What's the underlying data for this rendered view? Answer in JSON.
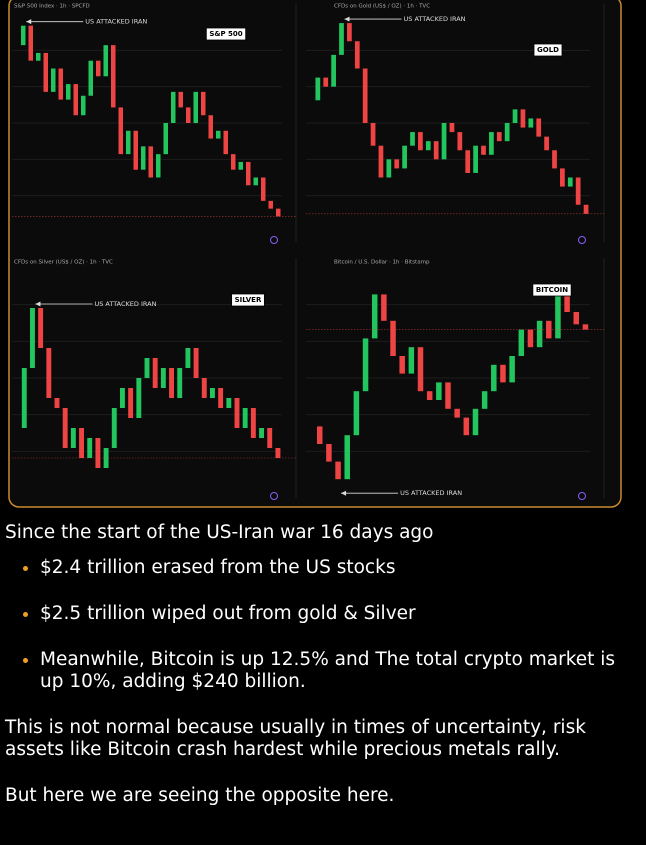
{
  "chart_data": [
    {
      "type": "candlestick",
      "header": "S&P 500 Index · 1h · SPCFD",
      "label": "S&P 500",
      "annotation": "US ATTACKED IRAN",
      "ylim": [
        6620,
        6900
      ],
      "up_color": "#22c55e",
      "down_color": "#ef4444",
      "values": [
        6860,
        6885,
        6840,
        6850,
        6800,
        6830,
        6790,
        6810,
        6770,
        6795,
        6840,
        6820,
        6860,
        6780,
        6720,
        6750,
        6700,
        6730,
        6690,
        6720,
        6760,
        6800,
        6780,
        6760,
        6800,
        6770,
        6740,
        6750,
        6720,
        6700,
        6710,
        6680,
        6690,
        6660,
        6650,
        6640
      ]
    },
    {
      "type": "candlestick",
      "header": "CFDs on Gold (US$ / OZ) · 1h · TVC",
      "label": "GOLD",
      "annotation": "US ATTACKED IRAN",
      "ylim": [
        4960,
        5440
      ],
      "up_color": "#22c55e",
      "down_color": "#ef4444",
      "values": [
        5250,
        5300,
        5280,
        5350,
        5420,
        5380,
        5320,
        5200,
        5150,
        5080,
        5120,
        5100,
        5150,
        5180,
        5140,
        5160,
        5120,
        5200,
        5180,
        5140,
        5090,
        5150,
        5130,
        5180,
        5160,
        5200,
        5230,
        5190,
        5210,
        5170,
        5140,
        5100,
        5060,
        5080,
        5020,
        5000
      ]
    },
    {
      "type": "candlestick",
      "header": "CFDs on Silver (US$ / OZ) · 1h · TVC",
      "label": "SILVER",
      "annotation": "US ATTACKED IRAN",
      "ylim": [
        76,
        98
      ],
      "up_color": "#22c55e",
      "down_color": "#ef4444",
      "values": [
        82,
        88,
        94,
        90,
        85,
        84,
        80,
        82,
        79,
        81,
        78,
        80,
        84,
        86,
        83,
        87,
        89,
        86,
        88,
        85,
        88,
        90,
        87,
        85,
        86,
        84,
        85,
        82,
        84,
        81,
        82,
        80,
        79
      ]
    },
    {
      "type": "candlestick",
      "header": "Bitcoin / U.S. Dollar · 1h · Bitstamp",
      "label": "BITCOIN",
      "annotation": "US ATTACKED IRAN",
      "ylim": [
        62500,
        75000
      ],
      "up_color": "#22c55e",
      "down_color": "#ef4444",
      "values": [
        66000,
        65000,
        64000,
        63000,
        65500,
        68000,
        71000,
        73500,
        72000,
        70000,
        69000,
        70500,
        68000,
        67500,
        68500,
        67000,
        66500,
        65500,
        67000,
        68000,
        69500,
        68500,
        70000,
        71500,
        70500,
        72000,
        71000,
        73500,
        72500,
        71800,
        71500
      ]
    }
  ],
  "post": {
    "intro": "Since the start of the US-Iran war 16 days ago",
    "bullets": [
      "$2.4 trillion erased from the US stocks",
      "$2.5 trillion wiped out from gold & Silver",
      "Meanwhile, Bitcoin is up 12.5% and The total crypto market is up 10%, adding $240 billion."
    ],
    "paragraph": "This is not normal because usually in times of uncertainty, risk assets like Bitcoin crash hardest while precious metals rally.",
    "closing": "But here we are seeing the opposite here."
  }
}
